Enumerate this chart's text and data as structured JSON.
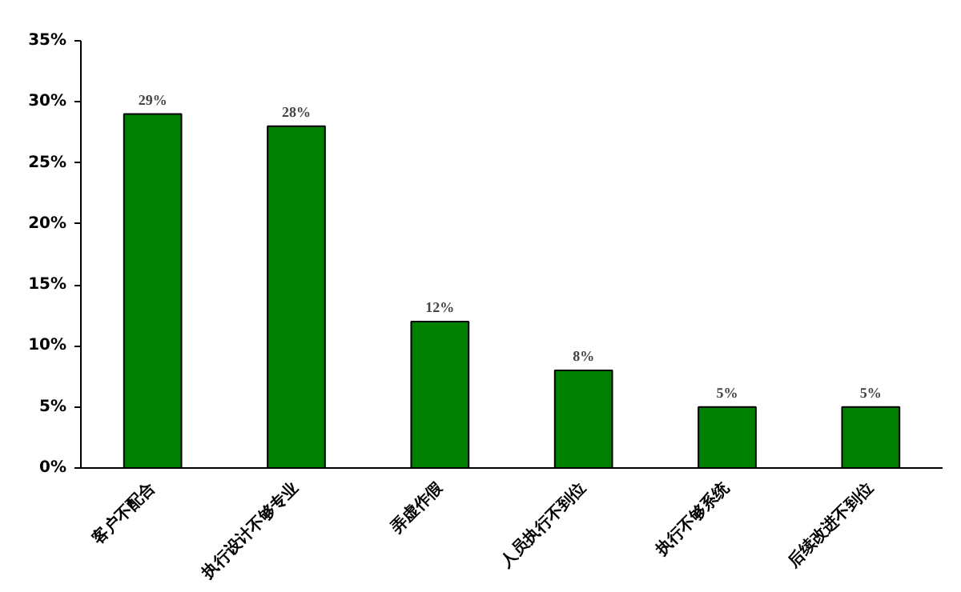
{
  "chart_data": {
    "type": "bar",
    "categories": [
      "客户不配合",
      "执行设计不够专业",
      "弄虚作假",
      "人员执行不到位",
      "执行不够系统",
      "后续改进不到位"
    ],
    "values": [
      29,
      28,
      12,
      8,
      5,
      5
    ],
    "value_labels": [
      "29%",
      "28%",
      "12%",
      "8%",
      "5%",
      "5%"
    ],
    "color": "#008000",
    "ylim": [
      0,
      35
    ],
    "yticks": [
      {
        "value": 0,
        "label": "0%"
      },
      {
        "value": 5,
        "label": "5%"
      },
      {
        "value": 10,
        "label": "10%"
      },
      {
        "value": 15,
        "label": "15%"
      },
      {
        "value": 20,
        "label": "20%"
      },
      {
        "value": 25,
        "label": "25%"
      },
      {
        "value": 30,
        "label": "30%"
      },
      {
        "value": 35,
        "label": "35%"
      }
    ],
    "grid": false
  }
}
